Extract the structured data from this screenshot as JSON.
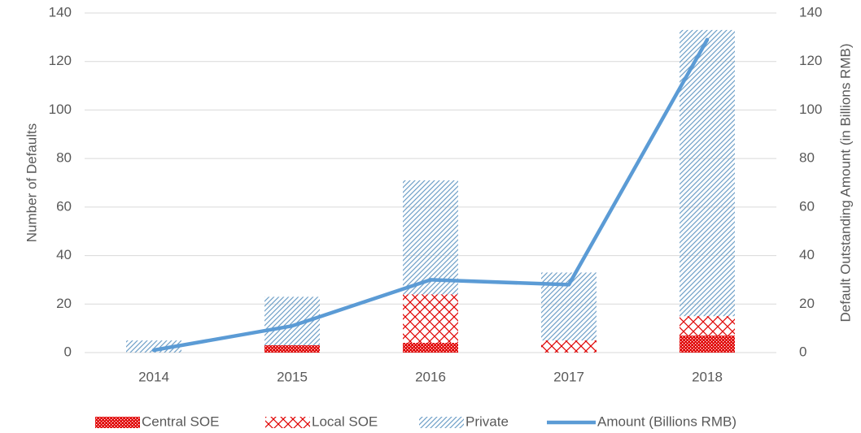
{
  "chart_data": {
    "type": "bar",
    "categories": [
      "2014",
      "2015",
      "2016",
      "2017",
      "2018"
    ],
    "series": [
      {
        "name": "Central SOE",
        "color": "#e00000",
        "pattern": "dots",
        "values": [
          0,
          3,
          4,
          0,
          7
        ]
      },
      {
        "name": "Local SOE",
        "color": "#e00000",
        "pattern": "cross",
        "values": [
          0,
          0,
          20,
          5,
          8
        ]
      },
      {
        "name": "Private",
        "color": "#6fa0c8",
        "pattern": "hatch",
        "values": [
          5,
          20,
          47,
          28,
          118
        ]
      },
      {
        "name": "Amount (Billions RMB)",
        "type": "line",
        "axis": "y2",
        "color": "#5b9bd5",
        "values": [
          1,
          11,
          30,
          28,
          129
        ]
      }
    ],
    "y_label": "Number of Defaults",
    "y2_label": "Default Outstanding Amount (in Billions RMB)",
    "ylim": [
      0,
      140
    ],
    "yticks": [
      0,
      20,
      40,
      60,
      80,
      100,
      120,
      140
    ],
    "y2lim": [
      0,
      140
    ],
    "y2ticks": [
      0,
      20,
      40,
      60,
      80,
      100,
      120,
      140
    ],
    "grid": true,
    "stacked": true,
    "legend": "bottom"
  }
}
